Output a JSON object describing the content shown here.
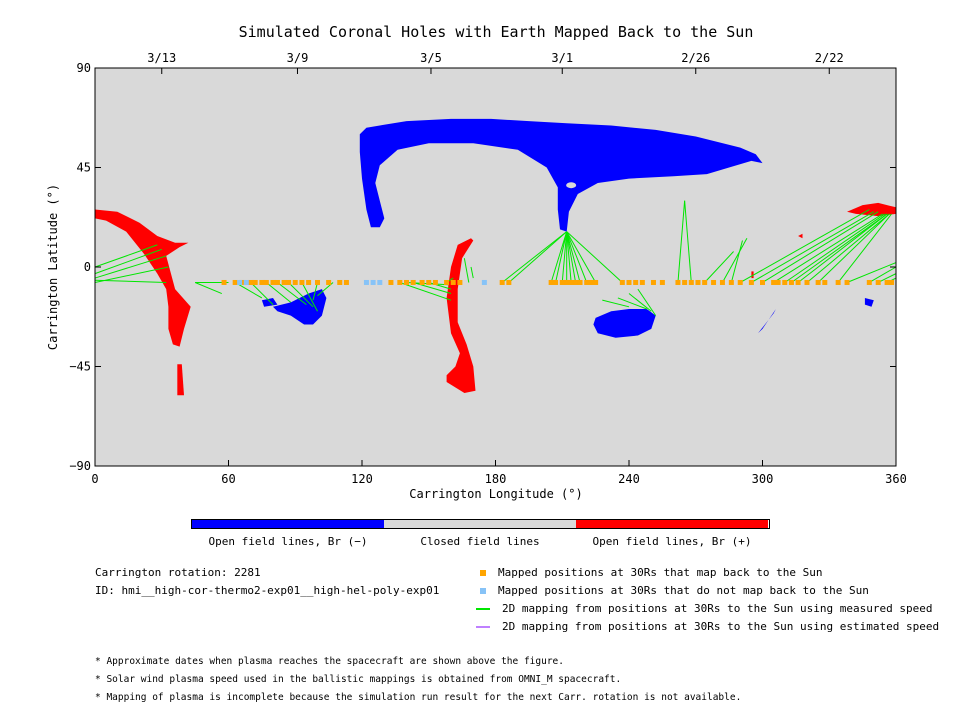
{
  "chart_data": {
    "type": "map",
    "title": "Simulated Coronal Holes with Earth Mapped Back to the Sun",
    "xlabel": "Carrington Longitude (°)",
    "ylabel": "Carrington Latitude (°)",
    "xlim": [
      0,
      360
    ],
    "ylim": [
      -90,
      90
    ],
    "x_ticks": [
      0,
      60,
      120,
      180,
      240,
      300,
      360
    ],
    "y_ticks": [
      -90,
      -45,
      0,
      45,
      90
    ],
    "y_tick_labels": [
      "−90",
      "−45",
      "0",
      "45",
      "90"
    ],
    "top_date_ticks": [
      {
        "x": 30,
        "label": "3/13"
      },
      {
        "x": 91,
        "label": "3/9"
      },
      {
        "x": 151,
        "label": "3/5"
      },
      {
        "x": 210,
        "label": "3/1"
      },
      {
        "x": 270,
        "label": "2/26"
      },
      {
        "x": 330,
        "label": "2/22"
      }
    ],
    "colors": {
      "background": "#d9d9d9",
      "open_negative": "#0000ff",
      "open_positive": "#ff0000",
      "mapped_point": "#ffa500",
      "unmapped_point": "#87c3f7",
      "measured_line": "#00e600",
      "estimated_line": "#bf80ff"
    },
    "regions": [
      {
        "polarity": "negative",
        "points": [
          [
            119,
            60
          ],
          [
            122,
            63
          ],
          [
            140,
            66
          ],
          [
            160,
            67
          ],
          [
            178,
            67
          ],
          [
            195,
            66
          ],
          [
            212,
            65
          ],
          [
            232,
            64
          ],
          [
            252,
            62
          ],
          [
            270,
            59
          ],
          [
            290,
            54
          ],
          [
            297,
            51
          ],
          [
            300,
            47
          ],
          [
            295,
            48
          ],
          [
            285,
            45
          ],
          [
            275,
            42
          ],
          [
            260,
            41
          ],
          [
            240,
            40
          ],
          [
            226,
            38
          ],
          [
            217,
            33
          ],
          [
            213,
            25
          ],
          [
            212,
            16
          ],
          [
            209,
            17
          ],
          [
            208,
            26
          ],
          [
            208,
            36
          ],
          [
            203,
            45
          ],
          [
            190,
            53
          ],
          [
            170,
            56
          ],
          [
            150,
            56
          ],
          [
            136,
            53
          ],
          [
            128,
            46
          ],
          [
            126,
            38
          ],
          [
            128,
            30
          ],
          [
            130,
            22
          ],
          [
            128,
            18
          ],
          [
            124,
            18
          ],
          [
            122,
            26
          ],
          [
            120,
            40
          ],
          [
            119,
            52
          ]
        ]
      },
      {
        "polarity": "negative",
        "points": [
          [
            80,
            -18
          ],
          [
            88,
            -16
          ],
          [
            96,
            -12
          ],
          [
            102,
            -10
          ],
          [
            104,
            -14
          ],
          [
            102,
            -22
          ],
          [
            98,
            -26
          ],
          [
            94,
            -26
          ],
          [
            88,
            -22
          ],
          [
            82,
            -20
          ]
        ]
      },
      {
        "polarity": "negative",
        "points": [
          [
            75,
            -15
          ],
          [
            80,
            -14
          ],
          [
            82,
            -17
          ],
          [
            76,
            -18
          ]
        ]
      },
      {
        "polarity": "negative",
        "points": [
          [
            225,
            -23
          ],
          [
            232,
            -20
          ],
          [
            240,
            -19
          ],
          [
            248,
            -19
          ],
          [
            252,
            -22
          ],
          [
            250,
            -28
          ],
          [
            244,
            -31
          ],
          [
            234,
            -32
          ],
          [
            226,
            -30
          ],
          [
            224,
            -26
          ]
        ]
      },
      {
        "polarity": "negative",
        "points": [
          [
            298,
            -30
          ],
          [
            305,
            -21
          ],
          [
            306,
            -19
          ],
          [
            304,
            -22
          ],
          [
            300,
            -28
          ]
        ]
      },
      {
        "polarity": "negative",
        "points": [
          [
            346,
            -14
          ],
          [
            350,
            -15
          ],
          [
            349,
            -18
          ],
          [
            346,
            -17
          ]
        ]
      },
      {
        "polarity": "positive",
        "points": [
          [
            0,
            26
          ],
          [
            10,
            25
          ],
          [
            20,
            20
          ],
          [
            28,
            14
          ],
          [
            36,
            11
          ],
          [
            42,
            11
          ],
          [
            38,
            9
          ],
          [
            32,
            5
          ],
          [
            36,
            -10
          ],
          [
            43,
            -18
          ],
          [
            40,
            -28
          ],
          [
            38,
            -36
          ],
          [
            35,
            -35
          ],
          [
            33,
            -28
          ],
          [
            33,
            -18
          ],
          [
            32,
            -10
          ],
          [
            28,
            -3
          ],
          [
            22,
            6
          ],
          [
            14,
            16
          ],
          [
            5,
            21
          ],
          [
            0,
            22
          ]
        ]
      },
      {
        "polarity": "positive",
        "points": [
          [
            37,
            -44
          ],
          [
            39,
            -44
          ],
          [
            40,
            -58
          ],
          [
            37,
            -58
          ]
        ]
      },
      {
        "polarity": "positive",
        "points": [
          [
            169,
            13
          ],
          [
            163,
            10
          ],
          [
            160,
            0
          ],
          [
            158,
            -14
          ],
          [
            160,
            -30
          ],
          [
            164,
            -39
          ],
          [
            162,
            -45
          ],
          [
            158,
            -49
          ],
          [
            158,
            -52
          ],
          [
            166,
            -57
          ],
          [
            171,
            -56
          ],
          [
            170,
            -45
          ],
          [
            167,
            -35
          ],
          [
            163,
            -25
          ],
          [
            163,
            -10
          ],
          [
            165,
            4
          ],
          [
            170,
            12
          ]
        ]
      },
      {
        "polarity": "positive",
        "points": [
          [
            338,
            25
          ],
          [
            345,
            28
          ],
          [
            352,
            29
          ],
          [
            360,
            27
          ],
          [
            360,
            24
          ],
          [
            352,
            23
          ],
          [
            342,
            24
          ]
        ]
      },
      {
        "polarity": "positive",
        "points": [
          [
            316,
            14
          ],
          [
            318,
            15
          ],
          [
            318,
            13
          ]
        ]
      },
      {
        "polarity": "positive",
        "points": [
          [
            295,
            -2
          ],
          [
            296,
            -2
          ],
          [
            296,
            -5
          ],
          [
            295,
            -5
          ]
        ]
      }
    ],
    "mapped_positions_lat": -7,
    "mapped_positions_lon": [
      58,
      63,
      66,
      70,
      72,
      75,
      77,
      80,
      82,
      85,
      87,
      90,
      93,
      96,
      100,
      105,
      110,
      113,
      133,
      137,
      140,
      143,
      147,
      150,
      153,
      158,
      161,
      164,
      183,
      186,
      205,
      207,
      210,
      212,
      214,
      216,
      218,
      221,
      223,
      225,
      237,
      240,
      243,
      246,
      251,
      255,
      262,
      265,
      268,
      271,
      274,
      278,
      282,
      286,
      290,
      295,
      300,
      305,
      307,
      310,
      313,
      316,
      320,
      325,
      328,
      334,
      338,
      348,
      352,
      356,
      358
    ],
    "unmapped_positions_lon": [
      65,
      68,
      122,
      125,
      128,
      175
    ],
    "mapping_lines": [
      [
        [
          0,
          0
        ],
        [
          28,
          10
        ]
      ],
      [
        [
          0,
          -3
        ],
        [
          30,
          8
        ]
      ],
      [
        [
          0,
          -5
        ],
        [
          32,
          5
        ]
      ],
      [
        [
          0,
          -7
        ],
        [
          33,
          0
        ]
      ],
      [
        [
          0,
          -6
        ],
        [
          32,
          -7
        ]
      ],
      [
        [
          45,
          -7
        ],
        [
          60,
          -7
        ]
      ],
      [
        [
          45,
          -7
        ],
        [
          57,
          -12
        ]
      ],
      [
        [
          63,
          -7
        ],
        [
          75,
          -14
        ]
      ],
      [
        [
          70,
          -7
        ],
        [
          80,
          -17
        ]
      ],
      [
        [
          77,
          -7
        ],
        [
          88,
          -16
        ]
      ],
      [
        [
          82,
          -7
        ],
        [
          95,
          -17
        ]
      ],
      [
        [
          87,
          -7
        ],
        [
          98,
          -18
        ]
      ],
      [
        [
          93,
          -7
        ],
        [
          100,
          -20
        ]
      ],
      [
        [
          100,
          -7
        ],
        [
          98,
          -15
        ]
      ],
      [
        [
          107,
          -7
        ],
        [
          100,
          -13
        ]
      ],
      [
        [
          137,
          -7
        ],
        [
          160,
          -15
        ]
      ],
      [
        [
          143,
          -7
        ],
        [
          160,
          -12
        ]
      ],
      [
        [
          150,
          -7
        ],
        [
          160,
          -10
        ]
      ],
      [
        [
          158,
          -7
        ],
        [
          161,
          -5
        ]
      ],
      [
        [
          140,
          -7
        ],
        [
          159,
          -8
        ]
      ],
      [
        [
          168,
          -7
        ],
        [
          166,
          4
        ]
      ],
      [
        [
          169,
          0
        ],
        [
          170,
          -5
        ]
      ],
      [
        [
          183,
          -7
        ],
        [
          212,
          16
        ]
      ],
      [
        [
          186,
          -7
        ],
        [
          212,
          16
        ]
      ],
      [
        [
          205,
          -7
        ],
        [
          212,
          16
        ]
      ],
      [
        [
          207,
          -7
        ],
        [
          212,
          16
        ]
      ],
      [
        [
          210,
          -7
        ],
        [
          212,
          16
        ]
      ],
      [
        [
          212,
          -7
        ],
        [
          212,
          16
        ]
      ],
      [
        [
          214,
          -7
        ],
        [
          212,
          16
        ]
      ],
      [
        [
          216,
          -7
        ],
        [
          212,
          16
        ]
      ],
      [
        [
          218,
          -7
        ],
        [
          212,
          16
        ]
      ],
      [
        [
          221,
          -7
        ],
        [
          212,
          16
        ]
      ],
      [
        [
          225,
          -7
        ],
        [
          212,
          16
        ]
      ],
      [
        [
          237,
          -7
        ],
        [
          212,
          16
        ]
      ],
      [
        [
          228,
          -15
        ],
        [
          240,
          -18
        ]
      ],
      [
        [
          235,
          -14
        ],
        [
          248,
          -19
        ]
      ],
      [
        [
          240,
          -12
        ],
        [
          250,
          -20
        ]
      ],
      [
        [
          244,
          -10
        ],
        [
          252,
          -22
        ]
      ],
      [
        [
          262,
          -7
        ],
        [
          265,
          30
        ]
      ],
      [
        [
          268,
          -7
        ],
        [
          265,
          30
        ]
      ],
      [
        [
          274,
          -7
        ],
        [
          287,
          7
        ]
      ],
      [
        [
          282,
          -7
        ],
        [
          293,
          13
        ]
      ],
      [
        [
          286,
          -7
        ],
        [
          291,
          12
        ]
      ],
      [
        [
          290,
          -7
        ],
        [
          348,
          26
        ]
      ],
      [
        [
          295,
          -7
        ],
        [
          350,
          25
        ]
      ],
      [
        [
          300,
          -7
        ],
        [
          352,
          25
        ]
      ],
      [
        [
          305,
          -7
        ],
        [
          354,
          24
        ]
      ],
      [
        [
          310,
          -7
        ],
        [
          355,
          24
        ]
      ],
      [
        [
          313,
          -7
        ],
        [
          356,
          24
        ]
      ],
      [
        [
          316,
          -7
        ],
        [
          356,
          24
        ]
      ],
      [
        [
          320,
          -7
        ],
        [
          357,
          24
        ]
      ],
      [
        [
          325,
          -7
        ],
        [
          357,
          24
        ]
      ],
      [
        [
          334,
          -7
        ],
        [
          358,
          24
        ]
      ],
      [
        [
          338,
          -7
        ],
        [
          360,
          2
        ]
      ],
      [
        [
          348,
          -7
        ],
        [
          360,
          0
        ]
      ],
      [
        [
          352,
          -7
        ],
        [
          360,
          -3
        ]
      ],
      [
        [
          356,
          -7
        ],
        [
          360,
          -5
        ]
      ]
    ]
  },
  "colorbar": {
    "labels": [
      "Open field lines, Br (−)",
      "Closed field lines",
      "Open field lines, Br (+)"
    ]
  },
  "info": {
    "carrington_rotation": "Carrington rotation: 2281",
    "run_id": "ID: hmi__high-cor-thermo2-exp01__high-hel-poly-exp01"
  },
  "legend": [
    {
      "label": "Mapped positions at 30Rs that map back to the Sun",
      "marker": "square",
      "color_key": "mapped_point"
    },
    {
      "label": "Mapped positions at 30Rs that do not map back to the Sun",
      "marker": "square",
      "color_key": "unmapped_point"
    },
    {
      "label": "2D mapping from positions at 30Rs to the Sun using measured speed",
      "marker": "line",
      "color_key": "measured_line"
    },
    {
      "label": "2D mapping from positions at 30Rs to the Sun using estimated speed",
      "marker": "line",
      "color_key": "estimated_line"
    }
  ],
  "notes": [
    "* Approximate dates when plasma reaches the spacecraft are shown above the figure.",
    "* Solar wind plasma speed used in the ballistic mappings is obtained from OMNI_M spacecraft.",
    "* Mapping of plasma is incomplete because the simulation run result for the next Carr. rotation is not available."
  ]
}
